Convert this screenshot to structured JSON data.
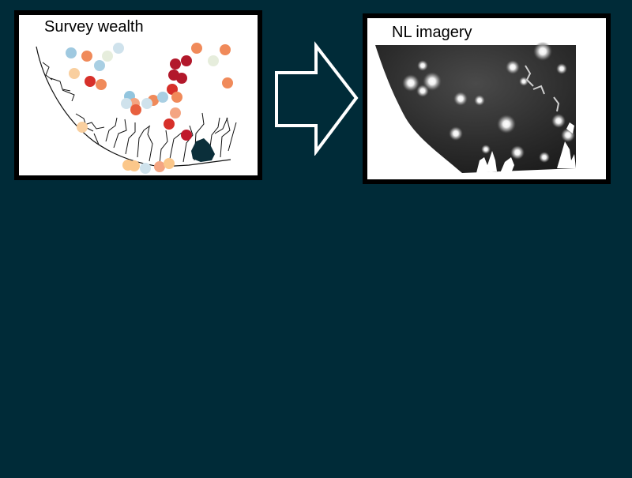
{
  "panels": {
    "left": {
      "title": "Survey wealth",
      "point_colors": {
        "poor": "#b2182b",
        "low": "#e8603f",
        "mid_low": "#f4a582",
        "mid_high": "#fddbc7",
        "mid": "#e6eddc",
        "high": "#92c5de",
        "rich": "#a9cfe3"
      }
    },
    "right": {
      "title": "NL imagery"
    }
  },
  "arrow": {
    "fill": "#002b38",
    "stroke": "#ffffff"
  }
}
